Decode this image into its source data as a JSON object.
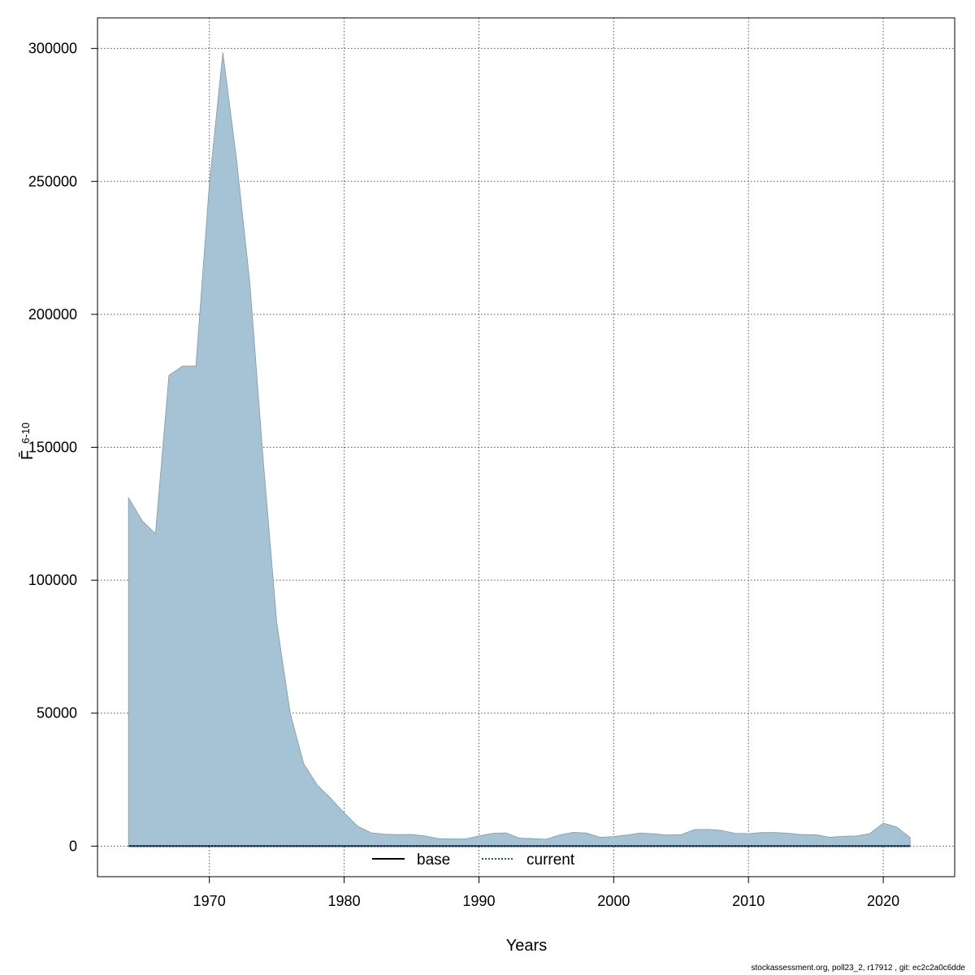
{
  "chart_data": {
    "type": "area",
    "xlabel": "Years",
    "ylabel": "F̄",
    "ylabel_subscript": "6-10",
    "xlim": [
      1961.7,
      2025.3
    ],
    "ylim": [
      -11500,
      311500
    ],
    "xticks": [
      1970,
      1980,
      1990,
      2000,
      2010,
      2020
    ],
    "yticks": [
      0,
      50000,
      100000,
      150000,
      200000,
      250000,
      300000
    ],
    "grid": true,
    "band_color": "#a5c3d4",
    "band": {
      "x": [
        1964,
        1965,
        1966,
        1967,
        1968,
        1969,
        1970,
        1971,
        1972,
        1973,
        1974,
        1975,
        1976,
        1977,
        1978,
        1979,
        1980,
        1981,
        1982,
        1983,
        1984,
        1985,
        1986,
        1987,
        1988,
        1989,
        1990,
        1991,
        1992,
        1993,
        1994,
        1995,
        1996,
        1997,
        1998,
        1999,
        2000,
        2001,
        2002,
        2003,
        2004,
        2005,
        2006,
        2007,
        2008,
        2009,
        2010,
        2011,
        2012,
        2013,
        2014,
        2015,
        2016,
        2017,
        2018,
        2019,
        2020,
        2021,
        2022
      ],
      "upper": [
        131000,
        122500,
        117500,
        177000,
        180500,
        180500,
        249000,
        298500,
        259000,
        212000,
        145000,
        84000,
        50000,
        31000,
        23000,
        18000,
        12500,
        7500,
        5000,
        4500,
        4300,
        4400,
        3800,
        2800,
        2700,
        2700,
        3800,
        4800,
        5000,
        3000,
        2800,
        2600,
        4200,
        5200,
        4900,
        3300,
        3600,
        4200,
        4900,
        4600,
        4200,
        4300,
        6200,
        6300,
        5900,
        4800,
        4700,
        5100,
        5100,
        4800,
        4300,
        4300,
        3300,
        3700,
        3800,
        4700,
        8600,
        7200,
        3200
      ],
      "lower": [
        0,
        0,
        0,
        0,
        0,
        0,
        0,
        0,
        0,
        0,
        0,
        0,
        0,
        0,
        0,
        0,
        0,
        0,
        0,
        0,
        0,
        0,
        0,
        0,
        0,
        0,
        0,
        0,
        0,
        0,
        0,
        0,
        0,
        0,
        0,
        0,
        0,
        0,
        0,
        0,
        0,
        0,
        0,
        0,
        0,
        0,
        0,
        0,
        0,
        0,
        0,
        0,
        0,
        0,
        0,
        0,
        0,
        0,
        0
      ]
    },
    "series": [
      {
        "name": "base",
        "color": "#000000",
        "style": "solid",
        "values_const": 0
      },
      {
        "name": "current",
        "color": "#1a5a8a",
        "style": "dotted",
        "values_const": 0
      }
    ],
    "legend_position": "bottom-center"
  },
  "footer": "stockassessment.org, poll23_2, r17912 , git: ec2c2a0c6dde"
}
